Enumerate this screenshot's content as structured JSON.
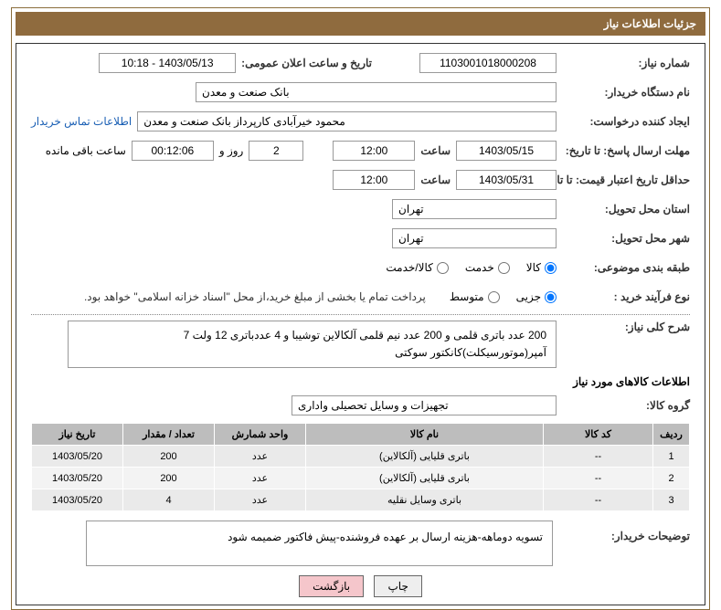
{
  "header": {
    "title": "جزئیات اطلاعات نیاز"
  },
  "fields": {
    "need_no_label": "شماره نیاز:",
    "need_no": "1103001018000208",
    "announce_label": "تاریخ و ساعت اعلان عمومی:",
    "announce_value": "1403/05/13 - 10:18",
    "buyer_org_label": "نام دستگاه خریدار:",
    "buyer_org": "بانک صنعت و معدن",
    "requester_label": "ایجاد کننده درخواست:",
    "requester": "محمود خیرآبادی کارپرداز بانک صنعت و معدن",
    "contact_link": "اطلاعات تماس خریدار",
    "deadline_label": "مهلت ارسال پاسخ: تا تاریخ:",
    "deadline_date": "1403/05/15",
    "time_label": "ساعت",
    "deadline_time": "12:00",
    "days_remain": "2",
    "days_and": "روز و",
    "time_remain": "00:12:06",
    "remain_suffix": "ساعت باقی مانده",
    "validity_label": "حداقل تاریخ اعتبار قیمت: تا تاریخ:",
    "validity_date": "1403/05/31",
    "validity_time": "12:00",
    "province_label": "استان محل تحویل:",
    "province": "تهران",
    "city_label": "شهر محل تحویل:",
    "city": "تهران",
    "category_label": "طبقه بندی موضوعی:",
    "cat_goods": "کالا",
    "cat_service": "خدمت",
    "cat_both": "کالا/خدمت",
    "process_label": "نوع فرآیند خرید :",
    "proc_minor": "جزیی",
    "proc_medium": "متوسط",
    "treasury_note": "پرداخت تمام یا بخشی از مبلغ خرید،از محل \"اسناد خزانه اسلامی\" خواهد بود.",
    "general_desc_label": "شرح کلی نیاز:",
    "general_desc": "200 عدد باتری قلمی و  200 عدد نیم قلمی آلکالاین توشیبا و  4 عددباتری 12 ولت 7 آمپر(موتورسیکلت)کانکتور سوکتی",
    "goods_section": "اطلاعات کالاهای مورد نیاز",
    "group_label": "گروه کالا:",
    "group_value": "تجهیزات و وسایل تحصیلی واداری",
    "buyer_notes_label": "توضیحات خریدار:",
    "buyer_notes": "تسویه دوماهه-هزینه ارسال بر عهده فروشنده-پیش فاکتور ضمیمه شود"
  },
  "table": {
    "headers": [
      "ردیف",
      "کد کالا",
      "نام کالا",
      "واحد شمارش",
      "تعداد / مقدار",
      "تاریخ نیاز"
    ],
    "rows": [
      [
        "1",
        "--",
        "باتری قلیایی (آلکالاین)",
        "عدد",
        "200",
        "1403/05/20"
      ],
      [
        "2",
        "--",
        "باتری قلیایی (آلکالاین)",
        "عدد",
        "200",
        "1403/05/20"
      ],
      [
        "3",
        "--",
        "باتری وسایل نقلیه",
        "عدد",
        "4",
        "1403/05/20"
      ]
    ]
  },
  "buttons": {
    "print": "چاپ",
    "back": "بازگشت"
  },
  "colors": {
    "header_bg": "#8f6b3e",
    "border": "#333333",
    "th_bg": "#bdbdbd",
    "td_bg": "#eaeaea",
    "link": "#1a5fb4"
  }
}
